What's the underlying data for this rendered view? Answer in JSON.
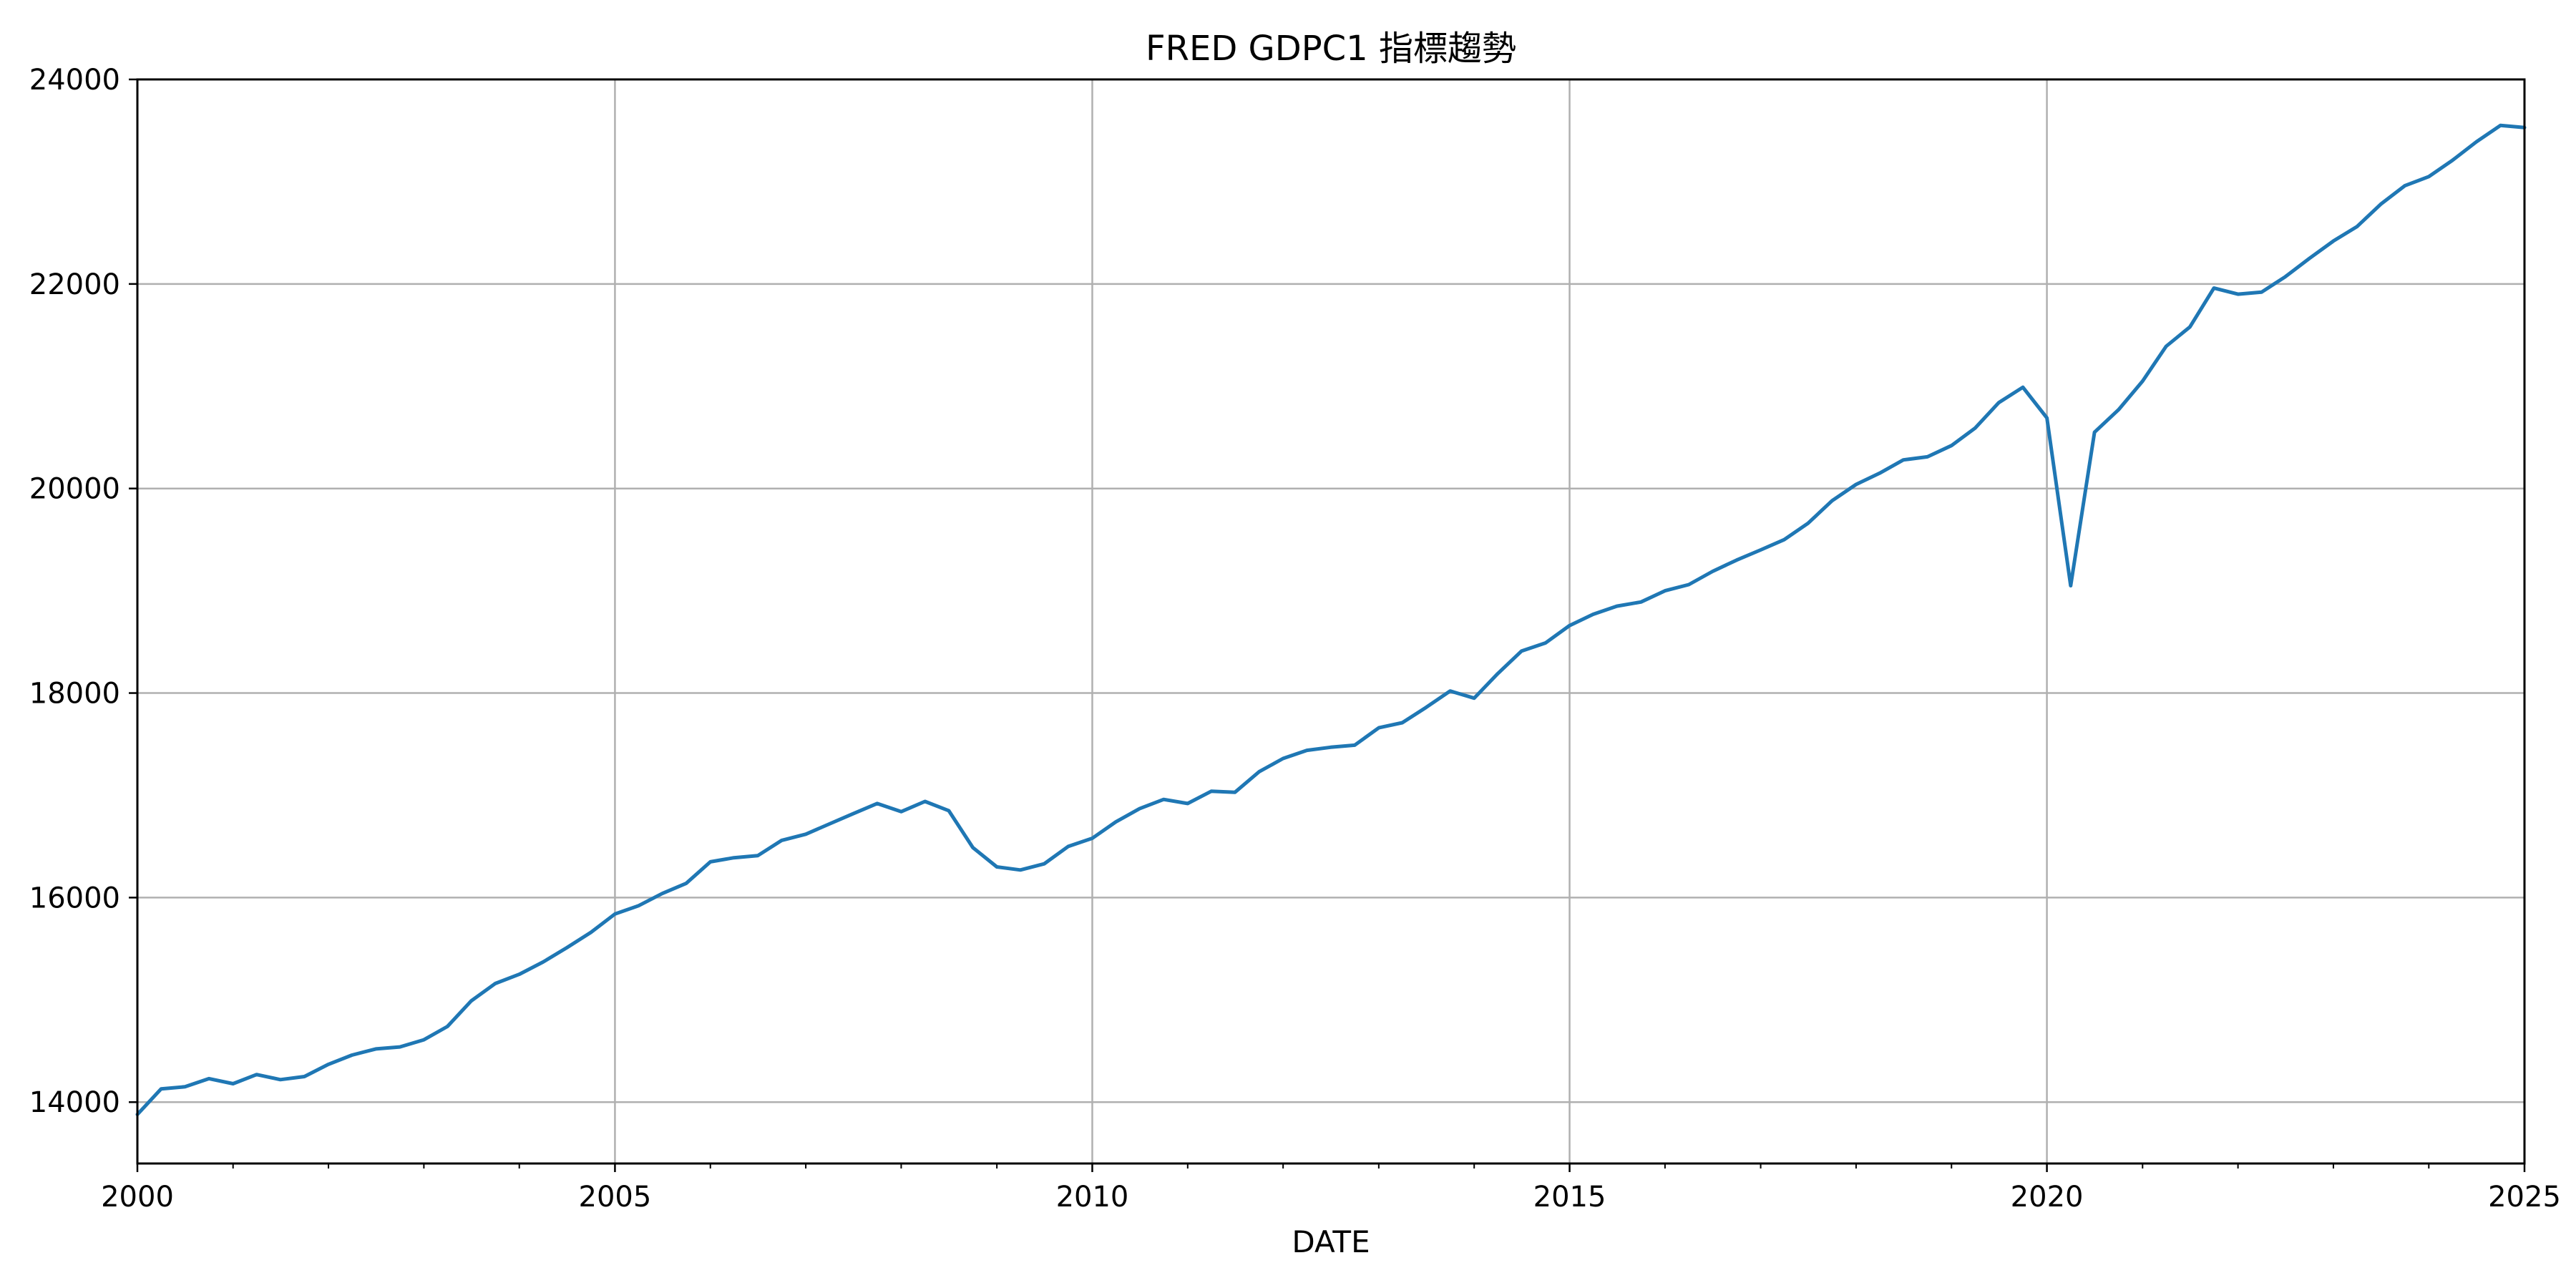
{
  "chart_data": {
    "type": "line",
    "title": "FRED GDPC1 指標趨勢",
    "xlabel": "DATE",
    "ylabel": "",
    "xlim": [
      "2000-01-01",
      "2025-01-01"
    ],
    "ylim": [
      13400,
      24000
    ],
    "x_ticks": [
      {
        "date": "2000-01-01",
        "label": "2000"
      },
      {
        "date": "2005-01-01",
        "label": "2005"
      },
      {
        "date": "2010-01-01",
        "label": "2010"
      },
      {
        "date": "2015-01-01",
        "label": "2015"
      },
      {
        "date": "2020-01-01",
        "label": "2020"
      },
      {
        "date": "2025-01-01",
        "label": "2025"
      }
    ],
    "y_ticks": [
      14000,
      16000,
      18000,
      20000,
      22000,
      24000
    ],
    "grid": true,
    "legend": "none",
    "series": [
      {
        "color": "#1f77b4",
        "x": [
          "2000-01-01",
          "2000-04-01",
          "2000-07-01",
          "2000-10-01",
          "2001-01-01",
          "2001-04-01",
          "2001-07-01",
          "2001-10-01",
          "2002-01-01",
          "2002-04-01",
          "2002-07-01",
          "2002-10-01",
          "2003-01-01",
          "2003-04-01",
          "2003-07-01",
          "2003-10-01",
          "2004-01-01",
          "2004-04-01",
          "2004-07-01",
          "2004-10-01",
          "2005-01-01",
          "2005-04-01",
          "2005-07-01",
          "2005-10-01",
          "2006-01-01",
          "2006-04-01",
          "2006-07-01",
          "2006-10-01",
          "2007-01-01",
          "2007-04-01",
          "2007-07-01",
          "2007-10-01",
          "2008-01-01",
          "2008-04-01",
          "2008-07-01",
          "2008-10-01",
          "2009-01-01",
          "2009-04-01",
          "2009-07-01",
          "2009-10-01",
          "2010-01-01",
          "2010-04-01",
          "2010-07-01",
          "2010-10-01",
          "2011-01-01",
          "2011-04-01",
          "2011-07-01",
          "2011-10-01",
          "2012-01-01",
          "2012-04-01",
          "2012-07-01",
          "2012-10-01",
          "2013-01-01",
          "2013-04-01",
          "2013-07-01",
          "2013-10-01",
          "2014-01-01",
          "2014-04-01",
          "2014-07-01",
          "2014-10-01",
          "2015-01-01",
          "2015-04-01",
          "2015-07-01",
          "2015-10-01",
          "2016-01-01",
          "2016-04-01",
          "2016-07-01",
          "2016-10-01",
          "2017-01-01",
          "2017-04-01",
          "2017-07-01",
          "2017-10-01",
          "2018-01-01",
          "2018-04-01",
          "2018-07-01",
          "2018-10-01",
          "2019-01-01",
          "2019-04-01",
          "2019-07-01",
          "2019-10-01",
          "2020-01-01",
          "2020-04-01",
          "2020-07-01",
          "2020-10-01",
          "2021-01-01",
          "2021-04-01",
          "2021-07-01",
          "2021-10-01",
          "2022-01-01",
          "2022-04-01",
          "2022-07-01",
          "2022-10-01",
          "2023-01-01",
          "2023-04-01",
          "2023-07-01",
          "2023-10-01",
          "2024-01-01",
          "2024-04-01",
          "2024-07-01",
          "2024-10-01",
          "2025-01-01"
        ],
        "values": [
          13880,
          14130,
          14150,
          14230,
          14180,
          14270,
          14220,
          14250,
          14370,
          14460,
          14520,
          14540,
          14610,
          14740,
          14990,
          15160,
          15250,
          15370,
          15510,
          15660,
          15840,
          15920,
          16040,
          16140,
          16350,
          16390,
          16410,
          16560,
          16620,
          16720,
          16820,
          16920,
          16840,
          16940,
          16850,
          16490,
          16300,
          16270,
          16330,
          16500,
          16580,
          16740,
          16870,
          16960,
          16920,
          17040,
          17030,
          17230,
          17360,
          17440,
          17470,
          17490,
          17660,
          17710,
          17860,
          18020,
          17950,
          18190,
          18410,
          18490,
          18660,
          18770,
          18850,
          18890,
          19000,
          19060,
          19190,
          19300,
          19400,
          19500,
          19660,
          19880,
          20040,
          20150,
          20280,
          20310,
          20420,
          20590,
          20840,
          20990,
          20690,
          19050,
          20550,
          20770,
          21050,
          21390,
          21580,
          21960,
          21900,
          21920,
          22070,
          22250,
          22420,
          22560,
          22780,
          22960,
          23050,
          23210,
          23390,
          23550,
          23530
        ]
      }
    ]
  }
}
